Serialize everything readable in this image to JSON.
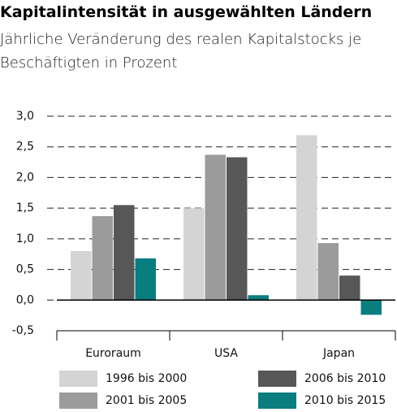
{
  "chart_data": {
    "type": "bar",
    "title": "Kapitalintensität in ausgewählten Ländern",
    "subtitle": "Jährliche Veränderung des realen Kapitalstocks je Beschäftigten in Prozent",
    "categories": [
      "Euroraum",
      "USA",
      "Japan"
    ],
    "series": [
      {
        "name": "1996 bis 2000",
        "color": "#d4d4d4",
        "values": [
          0.8,
          1.5,
          2.69
        ]
      },
      {
        "name": "2001 bis 2005",
        "color": "#9b9b9c",
        "values": [
          1.37,
          2.37,
          0.93
        ]
      },
      {
        "name": "2006 bis 2010",
        "color": "#575758",
        "values": [
          1.55,
          2.33,
          0.4
        ]
      },
      {
        "name": "2010 bis 2015",
        "color": "#0a7d7f",
        "values": [
          0.68,
          0.08,
          -0.24
        ]
      }
    ],
    "ylim": [
      -0.5,
      3.0
    ],
    "yticks": [
      {
        "value": 3.0,
        "label": "3,0"
      },
      {
        "value": 2.5,
        "label": "2,5"
      },
      {
        "value": 2.0,
        "label": "2,0"
      },
      {
        "value": 1.5,
        "label": "1,5"
      },
      {
        "value": 1.0,
        "label": "1,0"
      },
      {
        "value": 0.5,
        "label": "0,5"
      },
      {
        "value": 0.0,
        "label": "0,0"
      },
      {
        "value": -0.5,
        "label": "-0,5"
      }
    ],
    "grid": true
  }
}
